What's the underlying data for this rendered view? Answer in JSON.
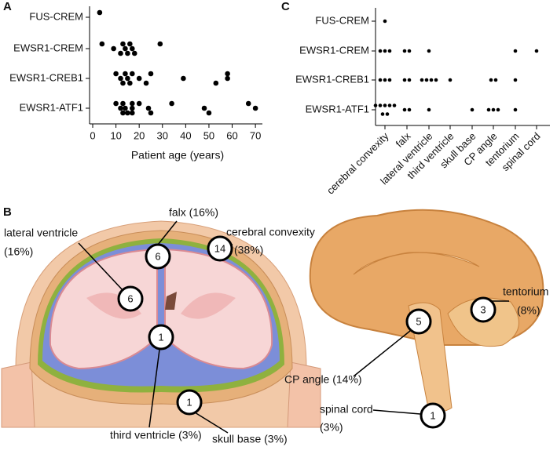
{
  "chart_data": [
    {
      "type": "strip",
      "panel_label": "A",
      "x_label": "Patient age (years)",
      "categories": [
        "FUS-CREM",
        "EWSR1-CREM",
        "EWSR1-CREB1",
        "EWSR1-ATF1"
      ],
      "values": [
        [
          3
        ],
        [
          4,
          9,
          12,
          13,
          14,
          15,
          16,
          17,
          18,
          29
        ],
        [
          10,
          12,
          13,
          14,
          15,
          16,
          17,
          20,
          23,
          25,
          39,
          53,
          58,
          58
        ],
        [
          10,
          12,
          13,
          13,
          14,
          15,
          17,
          17,
          17,
          20,
          24,
          25,
          34,
          48,
          50,
          67,
          70
        ]
      ],
      "color": "#000000",
      "xlim": [
        0,
        73
      ],
      "xticks": [
        0,
        10,
        20,
        30,
        40,
        50,
        60,
        70
      ]
    },
    {
      "type": "dot-matrix",
      "panel_label": "C",
      "categories": [
        "FUS-CREM",
        "EWSR1-CREM",
        "EWSR1-CREB1",
        "EWSR1-ATF1"
      ],
      "columns": [
        "cerebral convexity",
        "falx",
        "lateral ventricle",
        "third ventricle",
        "skull base",
        "CP angle",
        "tentorium",
        "spinal cord"
      ],
      "values": [
        [
          1,
          0,
          0,
          0,
          0,
          0,
          0,
          0
        ],
        [
          3,
          2,
          1,
          0,
          0,
          0,
          1,
          1
        ],
        [
          3,
          2,
          4,
          1,
          0,
          2,
          1,
          0
        ],
        [
          7,
          2,
          1,
          0,
          1,
          3,
          1,
          0
        ]
      ],
      "color": "#000000"
    }
  ],
  "diagram": {
    "panel_label": "B",
    "sites": [
      {
        "label": [
          "falx (16%)"
        ],
        "count": "6"
      },
      {
        "label": [
          "cerebral convexity",
          "(38%)"
        ],
        "count": "14"
      },
      {
        "label": [
          "lateral ventricle",
          "(16%)"
        ],
        "count": "6"
      },
      {
        "label": [
          "third ventricle (3%)"
        ],
        "count": "1"
      },
      {
        "label": [
          "skull base (3%)"
        ],
        "count": "1"
      },
      {
        "label": [
          "tentorium",
          "(8%)"
        ],
        "count": "3"
      },
      {
        "label": [
          "CP angle (14%)"
        ],
        "count": "5"
      },
      {
        "label": [
          "spinal cord",
          "(3%)"
        ],
        "count": "1"
      }
    ]
  }
}
